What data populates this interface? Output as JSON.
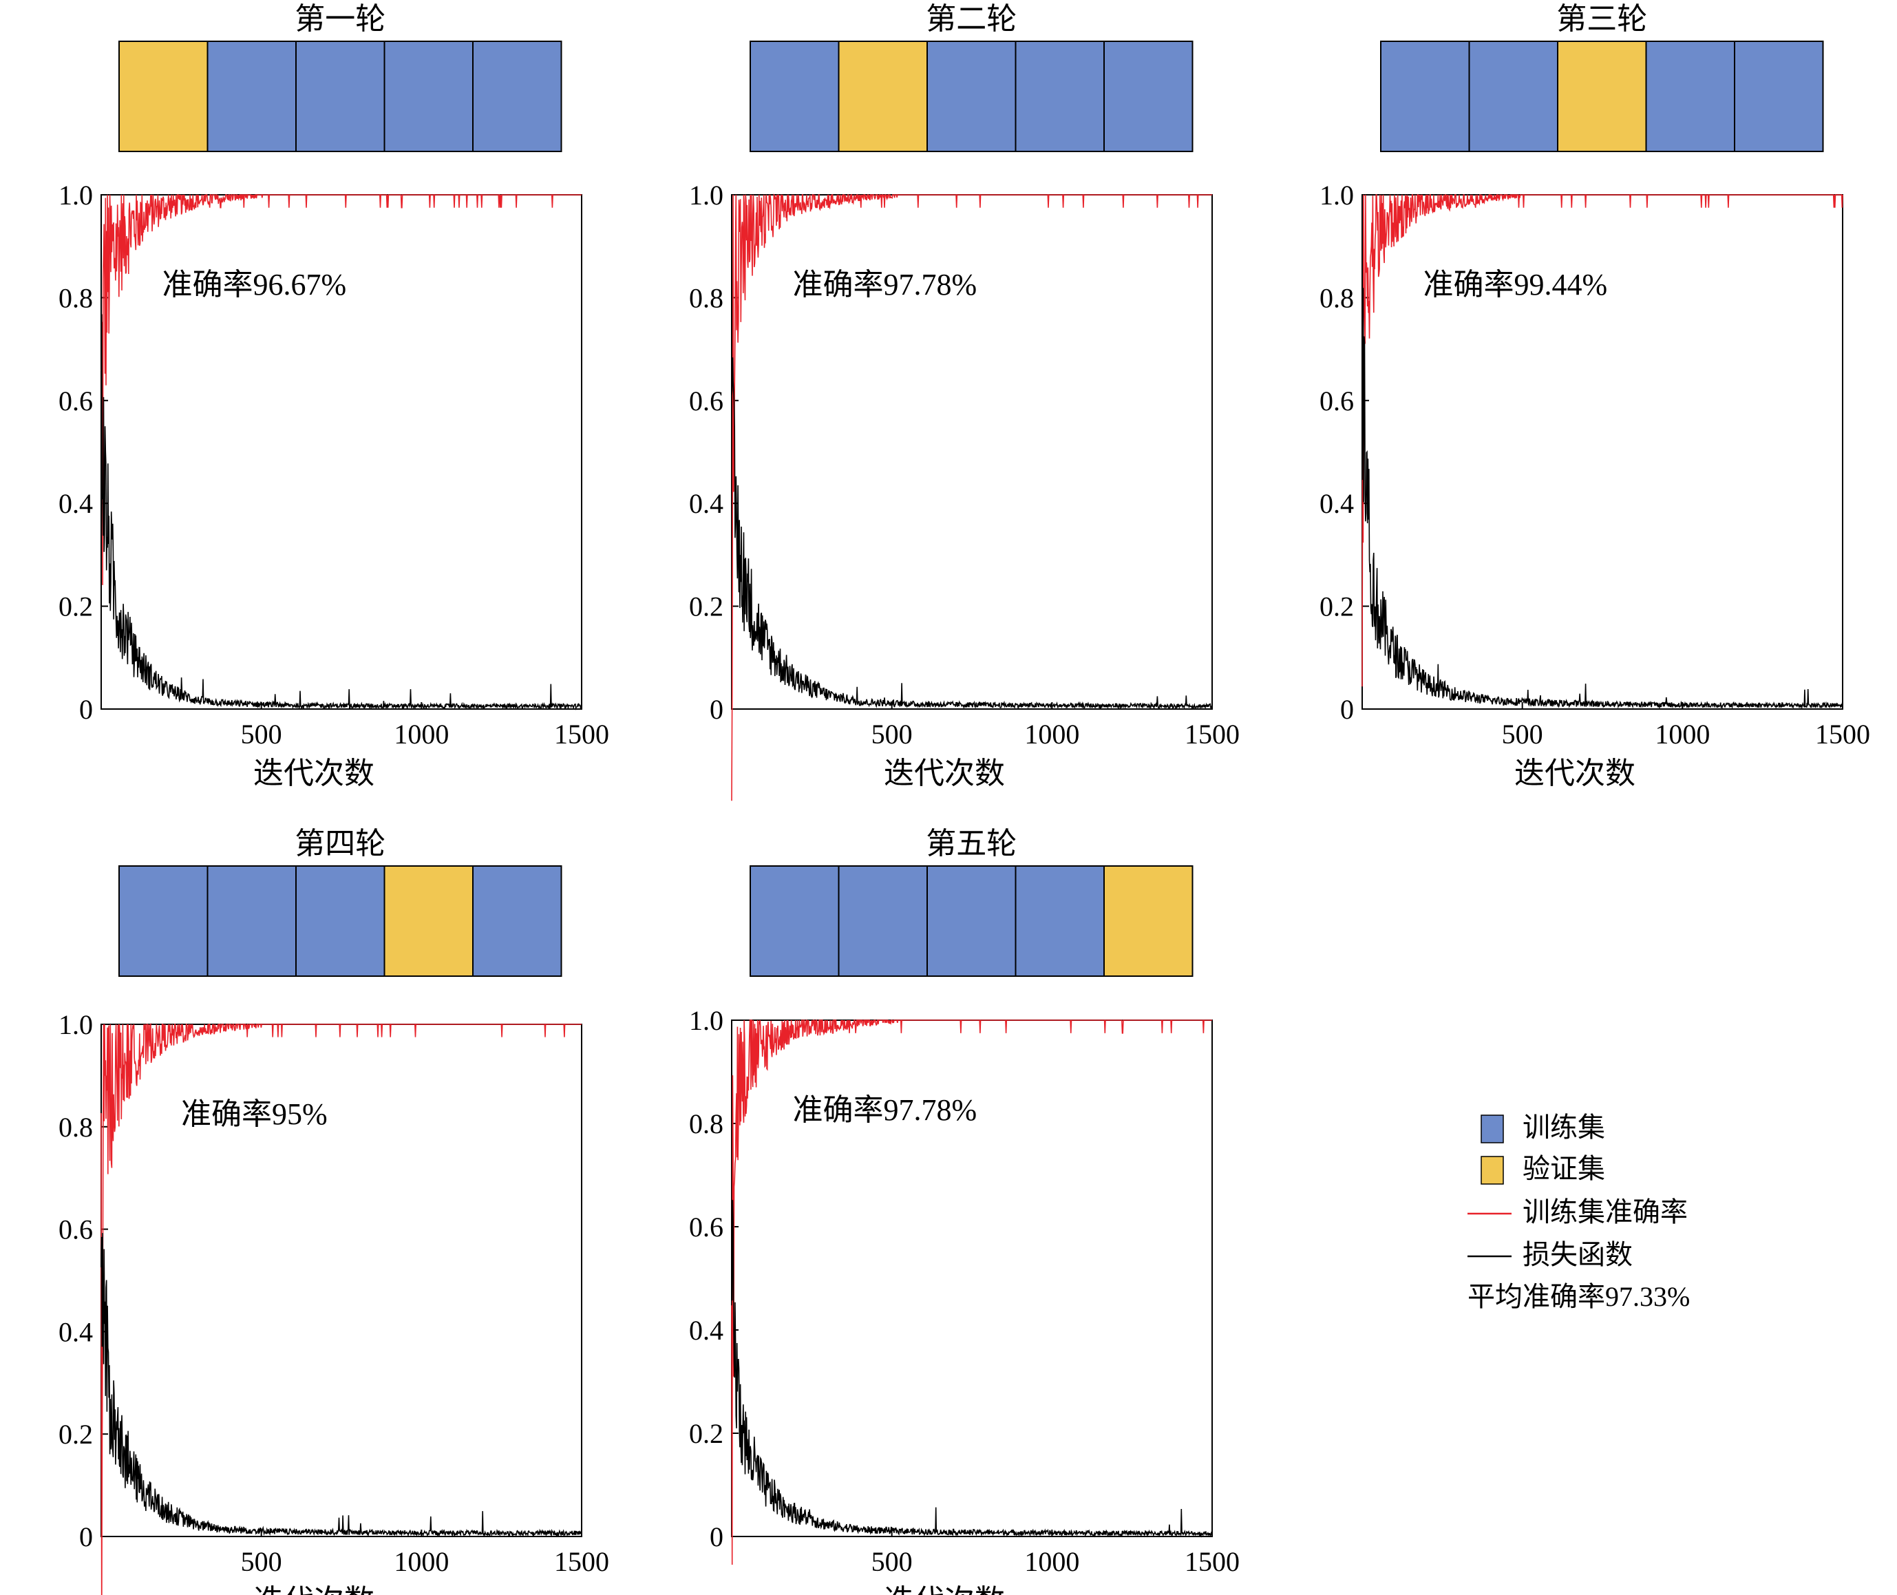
{
  "colors": {
    "train_set": "#6d8bcb",
    "validation_set": "#f1c752",
    "train_accuracy_line": "#e8222a",
    "loss_line": "#000000",
    "axis": "#000000"
  },
  "legend": {
    "train_set": "训练集",
    "validation_set": "验证集",
    "train_accuracy": "训练集准确率",
    "loss": "损失函数",
    "average": "平均准确率97.33%"
  },
  "chart_data": [
    {
      "type": "line",
      "title": "第一轮",
      "fold_blocks": [
        "validation",
        "train",
        "train",
        "train",
        "train"
      ],
      "annotation": "准确率96.67%",
      "xlabel": "迭代次数",
      "ylabel": "",
      "xlim": [
        0,
        1500
      ],
      "ylim": [
        0,
        1.0
      ],
      "xticks": [
        "500",
        "1000",
        "1500"
      ],
      "yticks": [
        "0",
        "0.2",
        "0.4",
        "0.6",
        "0.8",
        "1.0"
      ],
      "series": [
        {
          "name": "训练集准确率",
          "color": "#e8222a",
          "x": [
            0,
            10,
            25,
            50,
            100,
            150,
            200,
            300,
            400,
            600,
            1000,
            1500
          ],
          "y": [
            0.5,
            0.82,
            0.88,
            0.92,
            0.95,
            0.97,
            0.98,
            0.99,
            0.995,
            1.0,
            1.0,
            1.0
          ]
        },
        {
          "name": "损失函数",
          "color": "#000000",
          "x": [
            0,
            10,
            25,
            50,
            100,
            150,
            200,
            300,
            400,
            600,
            1000,
            1500
          ],
          "y": [
            0.55,
            0.4,
            0.28,
            0.18,
            0.1,
            0.06,
            0.035,
            0.015,
            0.01,
            0.006,
            0.005,
            0.005
          ]
        }
      ]
    },
    {
      "type": "line",
      "title": "第二轮",
      "fold_blocks": [
        "train",
        "validation",
        "train",
        "train",
        "train"
      ],
      "annotation": "准确率97.78%",
      "xlabel": "迭代次数",
      "ylabel": "",
      "xlim": [
        0,
        1500
      ],
      "ylim": [
        0,
        1.0
      ],
      "xticks": [
        "500",
        "1000",
        "1500"
      ],
      "yticks": [
        "0",
        "0.2",
        "0.4",
        "0.6",
        "0.8",
        "1.0"
      ],
      "series": [
        {
          "name": "训练集准确率",
          "color": "#e8222a",
          "x": [
            0,
            10,
            25,
            50,
            100,
            150,
            200,
            300,
            400,
            600,
            1000,
            1500
          ],
          "y": [
            0.55,
            0.85,
            0.9,
            0.93,
            0.96,
            0.975,
            0.985,
            0.99,
            0.995,
            1.0,
            1.0,
            1.0
          ]
        },
        {
          "name": "损失函数",
          "color": "#000000",
          "x": [
            0,
            10,
            25,
            50,
            100,
            150,
            200,
            300,
            400,
            600,
            1000,
            1500
          ],
          "y": [
            0.5,
            0.35,
            0.28,
            0.2,
            0.12,
            0.08,
            0.05,
            0.025,
            0.012,
            0.008,
            0.006,
            0.005
          ]
        }
      ]
    },
    {
      "type": "line",
      "title": "第三轮",
      "fold_blocks": [
        "train",
        "train",
        "validation",
        "train",
        "train"
      ],
      "annotation": "准确率99.44%",
      "xlabel": "迭代次数",
      "ylabel": "",
      "xlim": [
        0,
        1500
      ],
      "ylim": [
        0,
        1.0
      ],
      "xticks": [
        "500",
        "1000",
        "1500"
      ],
      "yticks": [
        "0",
        "0.2",
        "0.4",
        "0.6",
        "0.8",
        "1.0"
      ],
      "series": [
        {
          "name": "训练集准确率",
          "color": "#e8222a",
          "x": [
            0,
            10,
            25,
            50,
            100,
            150,
            200,
            300,
            400,
            600,
            1000,
            1500
          ],
          "y": [
            0.6,
            0.85,
            0.9,
            0.93,
            0.96,
            0.975,
            0.985,
            0.99,
            0.995,
            1.0,
            1.0,
            1.0
          ]
        },
        {
          "name": "损失函数",
          "color": "#000000",
          "x": [
            0,
            10,
            25,
            50,
            100,
            150,
            200,
            300,
            400,
            600,
            1000,
            1500
          ],
          "y": [
            0.62,
            0.45,
            0.25,
            0.17,
            0.1,
            0.07,
            0.045,
            0.025,
            0.015,
            0.01,
            0.007,
            0.006
          ]
        }
      ]
    },
    {
      "type": "line",
      "title": "第四轮",
      "fold_blocks": [
        "train",
        "train",
        "train",
        "validation",
        "train"
      ],
      "annotation": "准确率95%",
      "xlabel": "迭代次数",
      "ylabel": "",
      "xlim": [
        0,
        1500
      ],
      "ylim": [
        0,
        1.0
      ],
      "xticks": [
        "500",
        "1000",
        "1500"
      ],
      "yticks": [
        "0",
        "0.2",
        "0.4",
        "0.6",
        "0.8",
        "1.0"
      ],
      "series": [
        {
          "name": "训练集准确率",
          "color": "#e8222a",
          "x": [
            0,
            10,
            25,
            50,
            100,
            150,
            200,
            300,
            400,
            600,
            1000,
            1500
          ],
          "y": [
            0.5,
            0.84,
            0.88,
            0.92,
            0.95,
            0.97,
            0.98,
            0.99,
            0.995,
            1.0,
            1.0,
            1.0
          ]
        },
        {
          "name": "损失函数",
          "color": "#000000",
          "x": [
            0,
            10,
            25,
            50,
            100,
            150,
            200,
            300,
            400,
            600,
            1000,
            1500
          ],
          "y": [
            0.48,
            0.38,
            0.25,
            0.18,
            0.11,
            0.07,
            0.045,
            0.02,
            0.012,
            0.008,
            0.006,
            0.006
          ]
        }
      ]
    },
    {
      "type": "line",
      "title": "第五轮",
      "fold_blocks": [
        "train",
        "train",
        "train",
        "train",
        "validation"
      ],
      "annotation": "准确率97.78%",
      "xlabel": "迭代次数",
      "ylabel": "",
      "xlim": [
        0,
        1500
      ],
      "ylim": [
        0,
        1.0
      ],
      "xticks": [
        "500",
        "1000",
        "1500"
      ],
      "yticks": [
        "0",
        "0.2",
        "0.4",
        "0.6",
        "0.8",
        "1.0"
      ],
      "series": [
        {
          "name": "训练集准确率",
          "color": "#e8222a",
          "x": [
            0,
            10,
            25,
            50,
            100,
            150,
            200,
            300,
            400,
            600,
            1000,
            1500
          ],
          "y": [
            0.55,
            0.86,
            0.9,
            0.93,
            0.96,
            0.975,
            0.985,
            0.99,
            0.995,
            1.0,
            1.0,
            1.0
          ]
        },
        {
          "name": "损失函数",
          "color": "#000000",
          "x": [
            0,
            10,
            25,
            50,
            100,
            150,
            200,
            300,
            400,
            600,
            1000,
            1500
          ],
          "y": [
            0.48,
            0.32,
            0.22,
            0.15,
            0.09,
            0.06,
            0.04,
            0.02,
            0.012,
            0.008,
            0.006,
            0.005
          ]
        }
      ]
    }
  ]
}
